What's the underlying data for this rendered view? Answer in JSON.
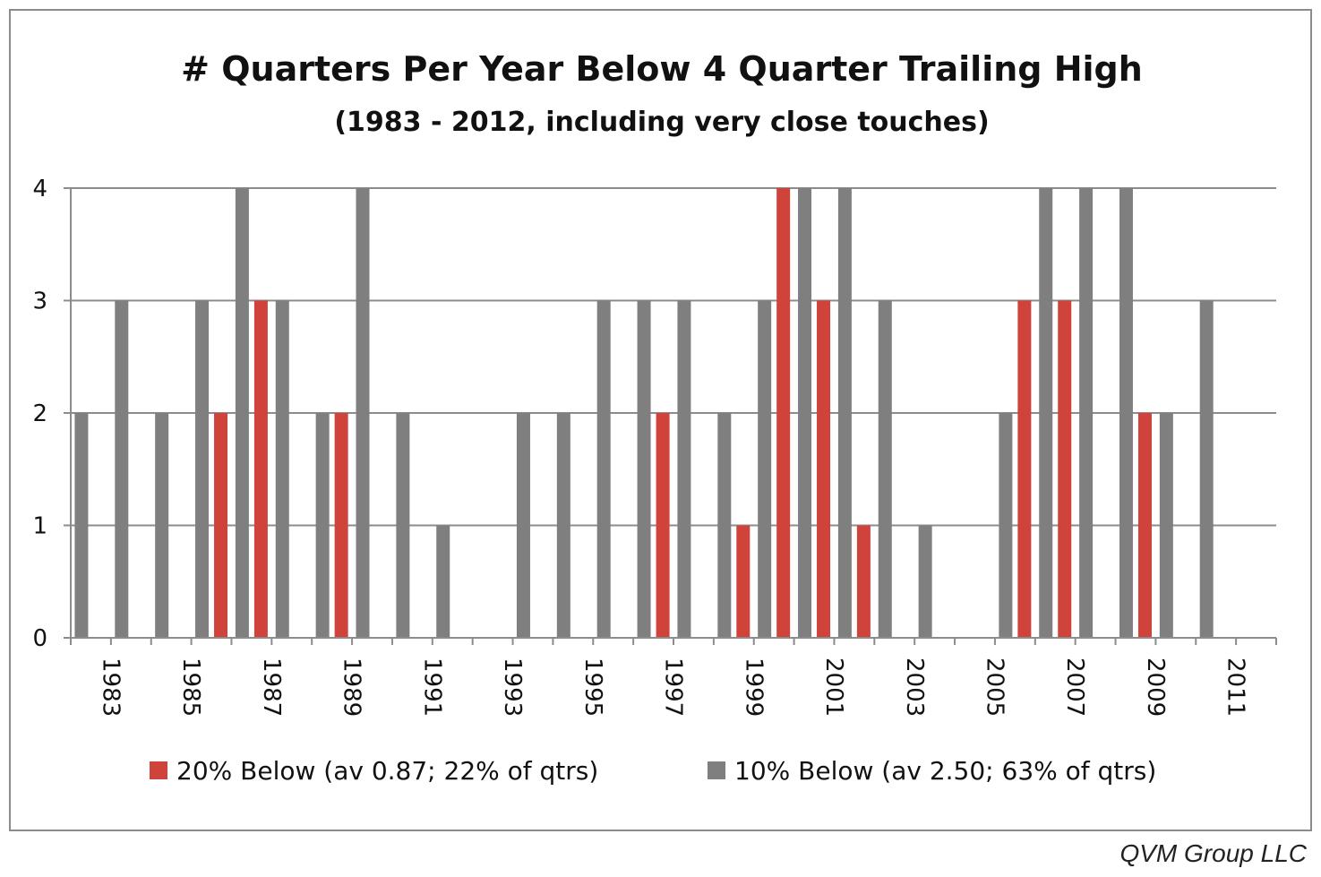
{
  "chart_data": {
    "type": "bar",
    "title": "# Quarters Per Year Below 4 Quarter Trailing High",
    "subtitle": "(1983 - 2012, including very close touches)",
    "categories": [
      "1983",
      "1984",
      "1985",
      "1986",
      "1987",
      "1988",
      "1989",
      "1990",
      "1991",
      "1992",
      "1993",
      "1994",
      "1995",
      "1996",
      "1997",
      "1998",
      "1999",
      "2000",
      "2001",
      "2002",
      "2003",
      "2004",
      "2005",
      "2006",
      "2007",
      "2008",
      "2009",
      "2010",
      "2011",
      "2012"
    ],
    "x_tick_labels": [
      "1983",
      "1985",
      "1987",
      "1989",
      "1991",
      "1993",
      "1995",
      "1997",
      "1999",
      "2001",
      "2003",
      "2005",
      "2007",
      "2009",
      "2011"
    ],
    "series": [
      {
        "name": "20% Below (av 0.87; 22% of qtrs)",
        "color": "#d0433a",
        "values": [
          0,
          0,
          0,
          2,
          3,
          0,
          2,
          0,
          0,
          0,
          0,
          0,
          0,
          0,
          2,
          0,
          1,
          4,
          3,
          1,
          0,
          0,
          0,
          3,
          3,
          0,
          2,
          0,
          0,
          0
        ]
      },
      {
        "name": "10% Below (av 2.50; 63% of qtrs)",
        "color": "#7f7f7f",
        "values": [
          2,
          3,
          2,
          3,
          4,
          3,
          2,
          4,
          2,
          1,
          0,
          2,
          2,
          3,
          3,
          3,
          2,
          3,
          4,
          4,
          3,
          1,
          0,
          2,
          4,
          4,
          4,
          2,
          3,
          0
        ]
      }
    ],
    "ylim": [
      0,
      4
    ],
    "y_ticks": [
      "0",
      "1",
      "2",
      "3",
      "4"
    ],
    "grid": true,
    "legend_position": "bottom"
  },
  "credit": "QVM Group LLC"
}
